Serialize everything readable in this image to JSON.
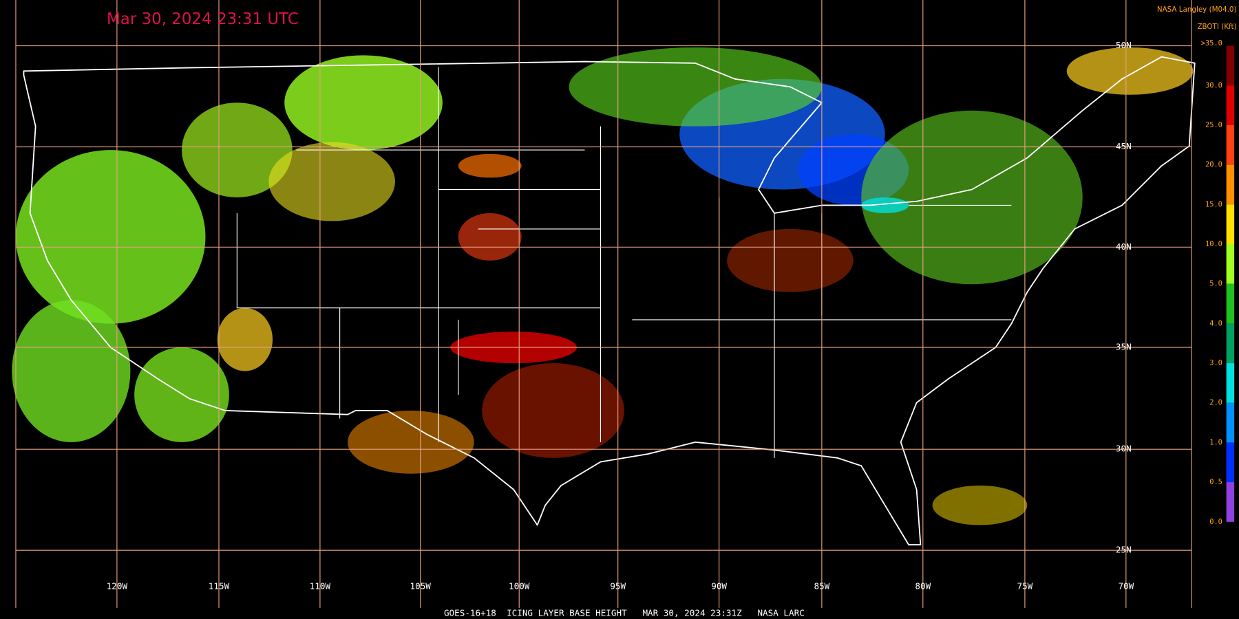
{
  "header": {
    "title": "Mar 30, 2024 23:31 UTC",
    "source": "NASA Langley (M04.0)",
    "product": "ZBOTI (Kft)"
  },
  "colorbar": {
    "labels": [
      ">35.0",
      "30.0",
      "25.0",
      "20.0",
      "15.0",
      "10.0",
      "5.0",
      "4.0",
      "3.0",
      "2.0",
      "1.0",
      "0.5",
      "0.0"
    ],
    "colors": [
      "#800000",
      "#e00000",
      "#ff4010",
      "#ff9000",
      "#ffe000",
      "#a0ff20",
      "#20c020",
      "#00a060",
      "#00e0e0",
      "#0090ff",
      "#0030ff",
      "#9040e0"
    ]
  },
  "map": {
    "lat_labels": [
      "50N",
      "45N",
      "40N",
      "35N",
      "30N",
      "25N"
    ],
    "lon_labels": [
      "120W",
      "115W",
      "110W",
      "105W",
      "100W",
      "95W",
      "90W",
      "85W",
      "80W",
      "75W",
      "70W"
    ]
  },
  "footer": {
    "caption": "GOES-16+18  ICING LAYER BASE HEIGHT   MAR 30, 2024 23:31Z   NASA LARC"
  }
}
